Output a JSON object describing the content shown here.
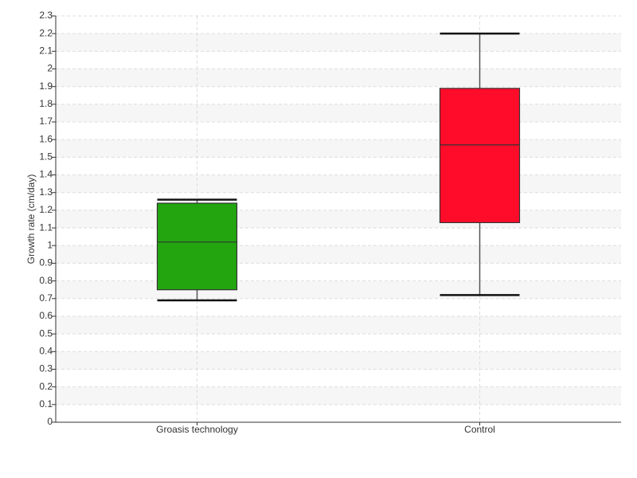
{
  "chart_data": {
    "type": "box",
    "y_label": "Growth rate (cm/day)",
    "categories": [
      "Groasis technology",
      "Control"
    ],
    "boxes": [
      {
        "min": 0.69,
        "q1": 0.75,
        "median": 1.02,
        "q3": 1.24,
        "max": 1.26,
        "color": "#22a50f"
      },
      {
        "min": 0.72,
        "q1": 1.13,
        "median": 1.57,
        "q3": 1.89,
        "max": 2.2,
        "color": "#ff0c2a"
      }
    ],
    "ylim": [
      0,
      2.3
    ],
    "yticks": [
      0,
      0.1,
      0.2,
      0.3,
      0.4,
      0.5,
      0.6,
      0.7,
      0.8,
      0.9,
      1,
      1.1,
      1.2,
      1.3,
      1.4,
      1.5,
      1.6,
      1.7,
      1.8,
      1.9,
      2,
      2.1,
      2.2,
      2.3
    ],
    "grid": true
  }
}
